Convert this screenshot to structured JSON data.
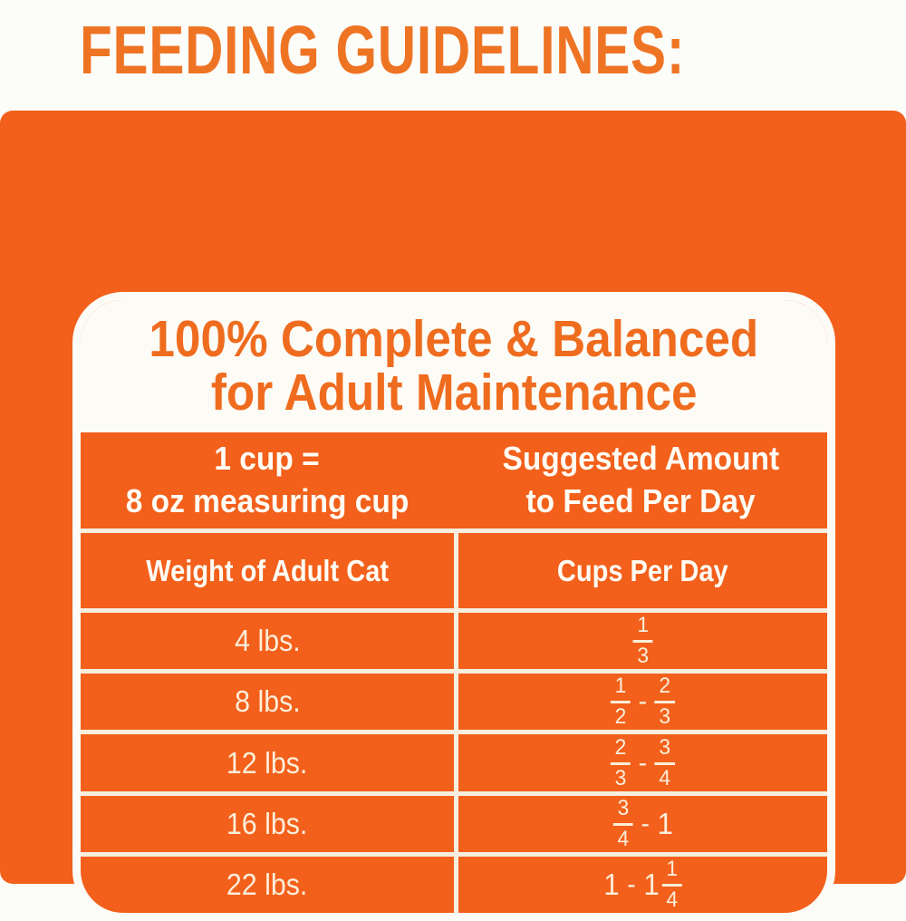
{
  "page": {
    "heading": "FEEDING GUIDELINES:"
  },
  "colors": {
    "brand_orange": "#F2601B",
    "heading_orange": "#EE7424",
    "title_orange": "#EF6C1F",
    "card_white": "#FDFBF5",
    "grid_line_cream": "#F6EFDF",
    "header_text": "#FFFCF4",
    "cell_text": "#FBEEDA",
    "page_background": "#FCFCF9"
  },
  "card": {
    "title_line1": "100% Complete & Balanced",
    "title_line2": "for Adult Maintenance",
    "cup_note_line1": "1 cup =",
    "cup_note_line2": "8 oz measuring cup",
    "amount_header_line1": "Suggested Amount",
    "amount_header_line2": "to Feed Per Day",
    "weight_column_label": "Weight of Adult Cat",
    "cups_column_label": "Cups Per Day",
    "rows": [
      {
        "weight": "4 lbs.",
        "amount": [
          [
            "frac",
            "1",
            "3"
          ]
        ]
      },
      {
        "weight": "8 lbs.",
        "amount": [
          [
            "frac",
            "1",
            "2"
          ],
          [
            "dash",
            "-"
          ],
          [
            "frac",
            "2",
            "3"
          ]
        ]
      },
      {
        "weight": "12 lbs.",
        "amount": [
          [
            "frac",
            "2",
            "3"
          ],
          [
            "dash",
            "-"
          ],
          [
            "frac",
            "3",
            "4"
          ]
        ]
      },
      {
        "weight": "16 lbs.",
        "amount": [
          [
            "frac",
            "3",
            "4"
          ],
          [
            "dash",
            "-"
          ],
          [
            "whole",
            "1"
          ]
        ]
      },
      {
        "weight": "22 lbs.",
        "amount": [
          [
            "whole",
            "1"
          ],
          [
            "dash",
            "-"
          ],
          [
            "whole",
            "1"
          ],
          [
            "frac",
            "1",
            "4"
          ]
        ]
      }
    ]
  },
  "chart_data": {
    "type": "table",
    "title": "100% Complete & Balanced for Adult Maintenance",
    "notes": [
      "1 cup = 8 oz measuring cup",
      "Suggested Amount to Feed Per Day"
    ],
    "columns": [
      "Weight of Adult Cat",
      "Cups Per Day"
    ],
    "rows": [
      [
        "4 lbs.",
        "1/3"
      ],
      [
        "8 lbs.",
        "1/2 - 2/3"
      ],
      [
        "12 lbs.",
        "2/3 - 3/4"
      ],
      [
        "16 lbs.",
        "3/4 - 1"
      ],
      [
        "22 lbs.",
        "1 - 1 1/4"
      ]
    ]
  }
}
